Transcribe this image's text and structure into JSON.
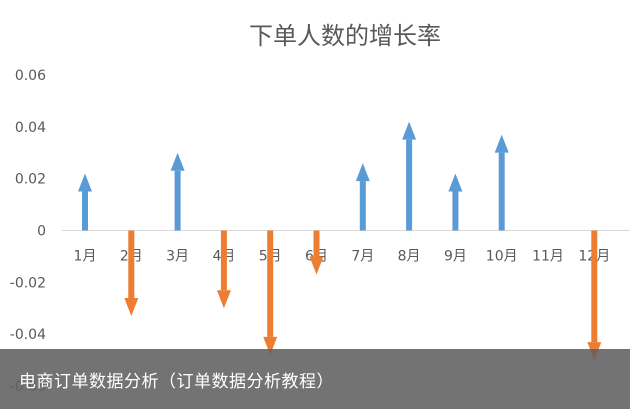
{
  "chart_data": {
    "type": "bar",
    "title": "下单人数的增长率",
    "categories": [
      "1月",
      "2月",
      "3月",
      "4月",
      "5月",
      "6月",
      "7月",
      "8月",
      "9月",
      "10月",
      "11月",
      "12月"
    ],
    "values": [
      0.022,
      -0.033,
      0.03,
      -0.03,
      -0.048,
      -0.017,
      0.026,
      0.042,
      0.022,
      0.037,
      0,
      -0.05
    ],
    "ylim": [
      -0.06,
      0.06
    ],
    "yticks": [
      0.06,
      0.04,
      0.02,
      0,
      -0.02,
      -0.04,
      -0.06
    ],
    "ytick_labels": [
      "0.06",
      "0.04",
      "0.02",
      "0",
      "-0.02",
      "-0.04",
      "-0.06"
    ],
    "marker": "arrow",
    "grid": false,
    "colors": {
      "positive": "#5B9BD5",
      "negative": "#ED7D31"
    }
  },
  "caption": "电商订单数据分析（订单数据分析教程）"
}
